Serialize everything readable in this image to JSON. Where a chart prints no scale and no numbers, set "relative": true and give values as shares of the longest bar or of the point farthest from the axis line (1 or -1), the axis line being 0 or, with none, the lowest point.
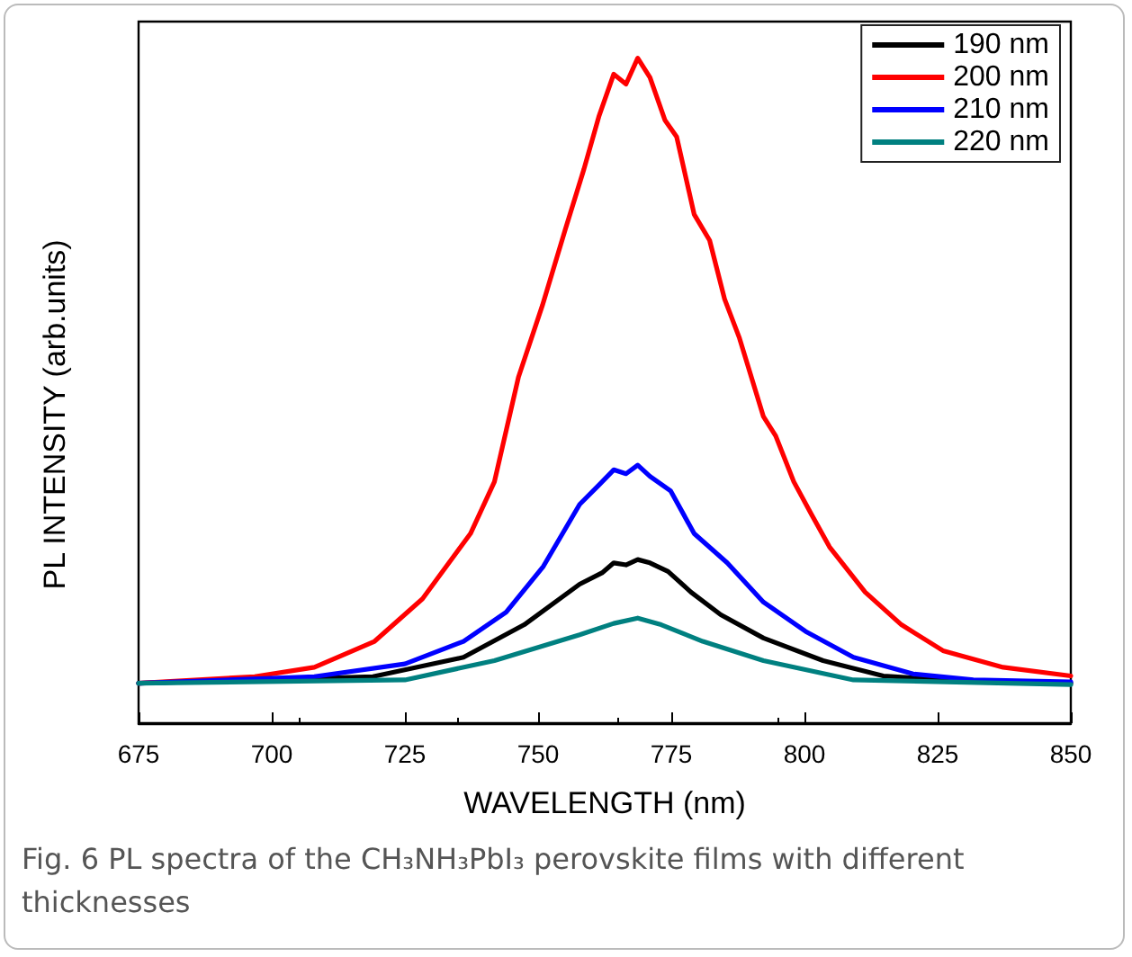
{
  "chart_data": {
    "type": "line",
    "relative": true,
    "xlabel": "WAVELENGTH (nm)",
    "ylabel": "PL INTENSITY (arb.units)",
    "annotations": [
      "Fig. 6 PL spectra of the CH₃NH₃PbI₃ perovskite films with different thicknesses"
    ],
    "xlim": [
      675,
      850
    ],
    "xticks": [
      675,
      700,
      725,
      750,
      775,
      800,
      825,
      850
    ],
    "legend": "top right",
    "grid": false,
    "marker": "none",
    "line_style": "solid",
    "series": [
      {
        "name": "190 nm",
        "color": "#000000",
        "x": [
          675,
          719,
          736,
          747.4,
          757.8,
          762,
          764.2,
          766.5,
          768.7,
          771,
          774.4,
          778.7,
          784.3,
          792.3,
          803.5,
          814.8,
          831.7,
          850
        ],
        "values": [
          0.06,
          0.07,
          0.099,
          0.148,
          0.209,
          0.226,
          0.241,
          0.238,
          0.246,
          0.241,
          0.228,
          0.197,
          0.163,
          0.128,
          0.094,
          0.071,
          0.062,
          0.06
        ]
      },
      {
        "name": "200 nm",
        "color": "#ff0000",
        "x": [
          675,
          696.8,
          708,
          719.3,
          728.3,
          737.3,
          741.8,
          746.3,
          750.8,
          755.2,
          758.6,
          761.4,
          764.2,
          766.5,
          768.7,
          771,
          773.8,
          776,
          779.3,
          782.2,
          785,
          787.8,
          792.3,
          794.6,
          798,
          801.3,
          804.7,
          811.4,
          818.2,
          826,
          837.3,
          850
        ],
        "values": [
          0.06,
          0.07,
          0.084,
          0.123,
          0.187,
          0.285,
          0.363,
          0.52,
          0.628,
          0.745,
          0.833,
          0.912,
          0.976,
          0.961,
          1,
          0.971,
          0.907,
          0.882,
          0.765,
          0.726,
          0.638,
          0.579,
          0.461,
          0.432,
          0.363,
          0.314,
          0.265,
          0.197,
          0.148,
          0.109,
          0.084,
          0.071
        ]
      },
      {
        "name": "210 nm",
        "color": "#0000ff",
        "x": [
          675,
          708,
          725,
          736,
          744,
          751,
          757.8,
          761.4,
          764.2,
          766.5,
          768.7,
          771,
          774.9,
          779.3,
          785.5,
          792.3,
          800.2,
          809.2,
          820.4,
          831.7,
          850
        ],
        "values": [
          0.06,
          0.07,
          0.089,
          0.123,
          0.167,
          0.236,
          0.329,
          0.358,
          0.381,
          0.375,
          0.388,
          0.371,
          0.349,
          0.285,
          0.241,
          0.182,
          0.138,
          0.099,
          0.074,
          0.065,
          0.062
        ]
      },
      {
        "name": "220 nm",
        "color": "#008080",
        "x": [
          675,
          725,
          741.8,
          757.8,
          764.2,
          768.7,
          773.1,
          780.9,
          792.3,
          809.2,
          850
        ],
        "values": [
          0.06,
          0.065,
          0.094,
          0.133,
          0.15,
          0.158,
          0.148,
          0.123,
          0.094,
          0.065,
          0.058
        ]
      }
    ]
  }
}
